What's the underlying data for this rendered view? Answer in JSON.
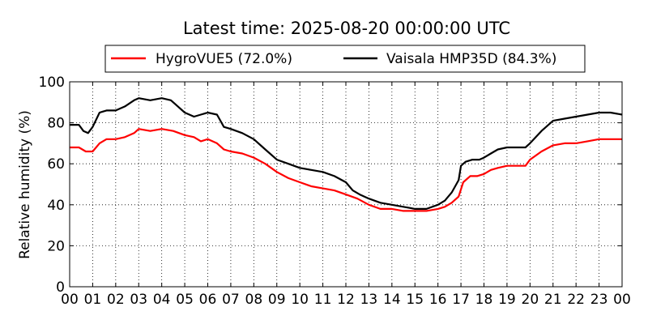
{
  "chart_data": {
    "type": "line",
    "title": "Latest time: 2025-08-20 00:00:00 UTC",
    "xlabel": "",
    "ylabel": "Relative humidity (%)",
    "ylim": [
      0,
      100
    ],
    "xlim": [
      0,
      24
    ],
    "yticks": [
      0,
      20,
      40,
      60,
      80,
      100
    ],
    "xtick_labels": [
      "00",
      "01",
      "02",
      "03",
      "04",
      "05",
      "06",
      "07",
      "08",
      "09",
      "10",
      "11",
      "12",
      "13",
      "14",
      "15",
      "16",
      "17",
      "18",
      "19",
      "20",
      "21",
      "22",
      "23",
      "00"
    ],
    "grid": true,
    "legend_position": "top",
    "series": [
      {
        "name": "HygroVUE5 (72.0%)",
        "color": "#ff0000",
        "x": [
          0,
          0.4,
          0.7,
          1.0,
          1.3,
          1.6,
          2.0,
          2.4,
          2.8,
          3.0,
          3.5,
          4.0,
          4.5,
          5.0,
          5.4,
          5.7,
          6.0,
          6.4,
          6.7,
          7.0,
          7.5,
          8.0,
          8.5,
          9.0,
          9.5,
          10.0,
          10.5,
          11.0,
          11.5,
          12.0,
          12.5,
          13.0,
          13.5,
          14.0,
          14.5,
          15.0,
          15.5,
          16.0,
          16.3,
          16.6,
          16.9,
          17.1,
          17.4,
          17.7,
          18.0,
          18.3,
          18.6,
          19.0,
          19.5,
          19.8,
          20.0,
          20.5,
          21.0,
          21.5,
          22.0,
          22.5,
          23.0,
          23.5,
          24.0
        ],
        "y": [
          68,
          68,
          66,
          66,
          70,
          72,
          72,
          73,
          75,
          77,
          76,
          77,
          76,
          74,
          73,
          71,
          72,
          70,
          67,
          66,
          65,
          63,
          60,
          56,
          53,
          51,
          49,
          48,
          47,
          45,
          43,
          40,
          38,
          38,
          37,
          37,
          37,
          38,
          39,
          41,
          44,
          51,
          54,
          54,
          55,
          57,
          58,
          59,
          59,
          59,
          62,
          66,
          69,
          70,
          70,
          71,
          72,
          72,
          72
        ]
      },
      {
        "name": "Vaisala HMP35D (84.3%)",
        "color": "#000000",
        "x": [
          0,
          0.4,
          0.6,
          0.8,
          1.0,
          1.3,
          1.6,
          2.0,
          2.4,
          2.8,
          3.0,
          3.5,
          4.0,
          4.4,
          4.7,
          5.0,
          5.4,
          5.7,
          6.0,
          6.4,
          6.7,
          7.0,
          7.5,
          8.0,
          8.5,
          9.0,
          9.5,
          10.0,
          10.5,
          11.0,
          11.5,
          12.0,
          12.3,
          12.6,
          13.0,
          13.5,
          14.0,
          14.5,
          15.0,
          15.5,
          16.0,
          16.3,
          16.6,
          16.9,
          17.0,
          17.2,
          17.5,
          17.8,
          18.0,
          18.3,
          18.6,
          19.0,
          19.5,
          19.8,
          20.0,
          20.5,
          21.0,
          21.5,
          22.0,
          22.5,
          23.0,
          23.5,
          24.0
        ],
        "y": [
          79,
          79,
          76,
          75,
          78,
          85,
          86,
          86,
          88,
          91,
          92,
          91,
          92,
          91,
          88,
          85,
          83,
          84,
          85,
          84,
          78,
          77,
          75,
          72,
          67,
          62,
          60,
          58,
          57,
          56,
          54,
          51,
          47,
          45,
          43,
          41,
          40,
          39,
          38,
          38,
          40,
          42,
          46,
          52,
          59,
          61,
          62,
          62,
          63,
          65,
          67,
          68,
          68,
          68,
          70,
          76,
          81,
          82,
          83,
          84,
          85,
          85,
          84
        ]
      }
    ]
  }
}
